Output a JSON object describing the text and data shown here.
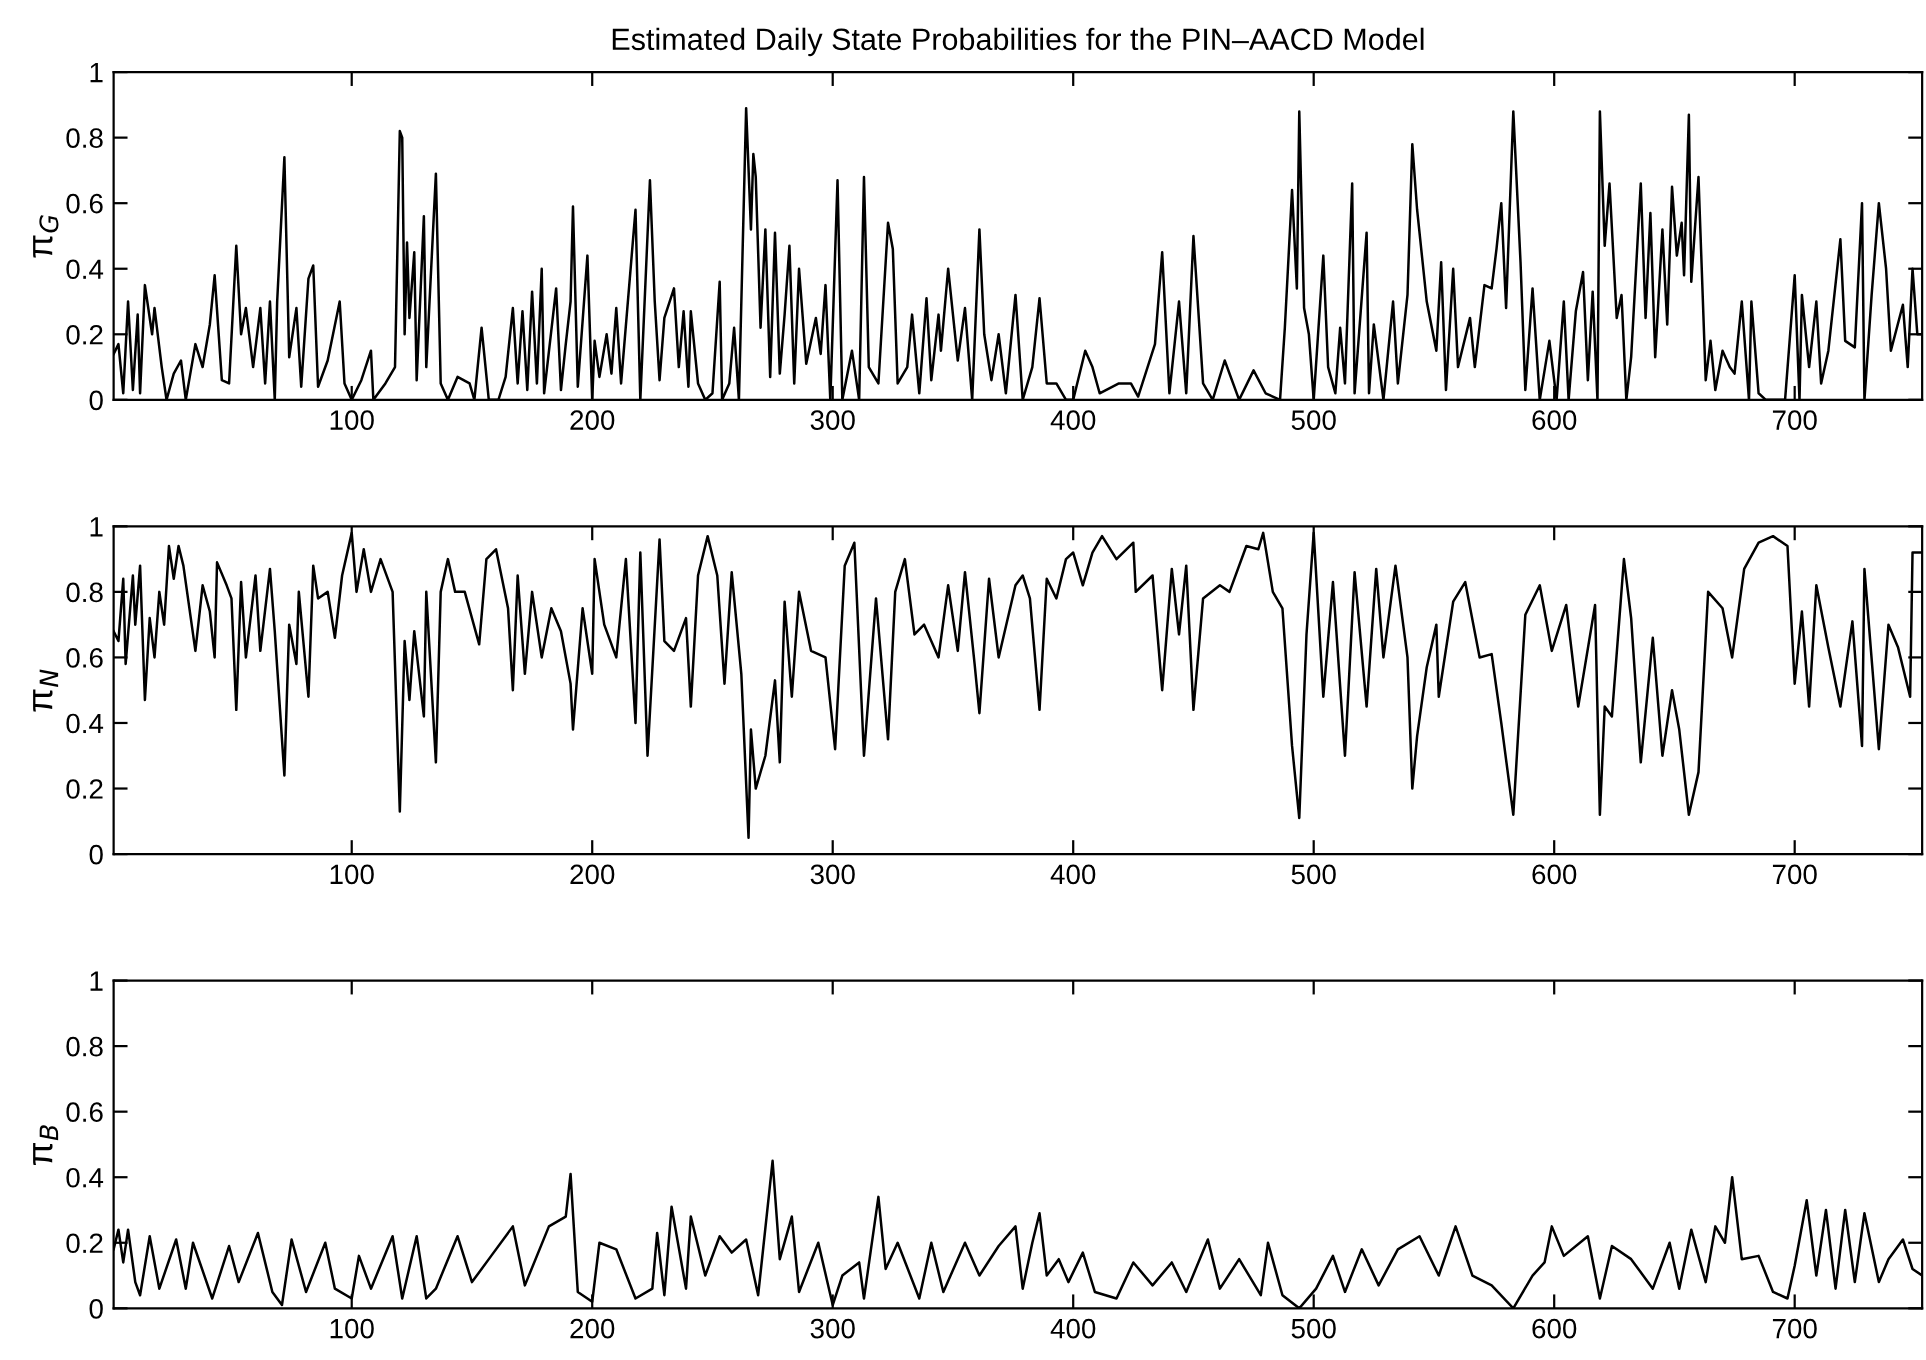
{
  "chart_data": [
    {
      "type": "line",
      "title": "Estimated Daily State Probabilities for the PIN–AACD Model",
      "ylabel": "π$_{G}$",
      "xlim": [
        1,
        753
      ],
      "xticks": [
        100,
        200,
        300,
        400,
        500,
        600,
        700
      ],
      "ylim": [
        0,
        1
      ],
      "yticks": [
        0,
        0.2,
        0.4,
        0.6,
        0.8,
        1
      ],
      "grid": false,
      "marker": "none",
      "line_style": "solid",
      "series": [
        {
          "color": "#000000",
          "x": [
            1,
            3,
            5,
            7,
            9,
            11,
            12,
            14,
            17,
            18,
            21,
            23,
            26,
            29,
            31,
            35,
            38,
            41,
            43,
            46,
            49,
            52,
            54,
            56,
            59,
            62,
            64,
            66,
            68,
            69,
            72,
            74,
            77,
            79,
            82,
            84,
            86,
            90,
            95,
            97,
            100,
            104,
            108,
            109,
            114,
            118,
            120,
            121,
            122,
            123,
            124,
            126,
            127,
            130,
            131,
            135,
            137,
            140,
            144,
            149,
            151,
            154,
            157,
            161,
            164,
            167,
            169,
            171,
            173,
            175,
            177,
            179,
            180,
            185,
            187,
            189,
            191,
            192,
            194,
            198,
            200,
            201,
            203,
            206,
            208,
            210,
            212,
            218,
            220,
            224,
            226,
            228,
            230,
            234,
            236,
            238,
            240,
            241,
            244,
            247,
            250,
            253,
            254,
            257,
            259,
            261,
            264,
            266,
            267,
            268,
            270,
            272,
            274,
            276,
            278,
            280,
            282,
            284,
            286,
            289,
            293,
            295,
            297,
            299,
            302,
            304,
            308,
            311,
            313,
            315,
            319,
            323,
            325,
            327,
            331,
            333,
            336,
            339,
            341,
            344,
            345,
            348,
            352,
            355,
            358,
            361,
            363,
            366,
            369,
            372,
            376,
            379,
            383,
            386,
            389,
            393,
            397,
            400,
            405,
            408,
            411,
            419,
            424,
            427,
            434,
            437,
            440,
            444,
            447,
            450,
            454,
            458,
            463,
            469,
            475,
            480,
            486,
            488,
            491,
            493,
            494,
            496,
            498,
            500,
            504,
            506,
            509,
            511,
            513,
            516,
            517,
            522,
            523,
            525,
            529,
            533,
            535,
            539,
            541,
            543,
            547,
            551,
            553,
            555,
            558,
            560,
            565,
            567,
            571,
            574,
            576,
            578,
            580,
            583,
            586,
            588,
            591,
            594,
            598,
            601,
            604,
            606,
            609,
            612,
            614,
            616,
            618,
            619,
            621,
            623,
            626,
            628,
            630,
            632,
            636,
            638,
            640,
            642,
            645,
            647,
            649,
            651,
            653,
            654,
            656,
            657,
            660,
            663,
            665,
            667,
            670,
            673,
            675,
            678,
            681,
            682,
            685,
            688,
            691,
            696,
            700,
            702,
            703,
            706,
            709,
            711,
            714,
            719,
            721,
            725,
            728,
            729,
            732,
            735,
            738,
            740,
            745,
            747,
            749,
            751,
            753
          ],
          "values": [
            0.14,
            0.17,
            0.02,
            0.3,
            0.03,
            0.26,
            0.02,
            0.35,
            0.2,
            0.28,
            0.1,
            0.0,
            0.08,
            0.12,
            0.0,
            0.17,
            0.1,
            0.23,
            0.38,
            0.06,
            0.05,
            0.47,
            0.2,
            0.28,
            0.1,
            0.28,
            0.05,
            0.3,
            0.0,
            0.3,
            0.74,
            0.13,
            0.28,
            0.04,
            0.37,
            0.41,
            0.04,
            0.12,
            0.3,
            0.05,
            0.0,
            0.06,
            0.15,
            0.0,
            0.05,
            0.1,
            0.82,
            0.8,
            0.2,
            0.48,
            0.25,
            0.45,
            0.06,
            0.56,
            0.1,
            0.69,
            0.05,
            0.0,
            0.07,
            0.05,
            0.0,
            0.22,
            0.0,
            0.0,
            0.07,
            0.28,
            0.05,
            0.27,
            0.03,
            0.33,
            0.05,
            0.4,
            0.02,
            0.34,
            0.03,
            0.17,
            0.3,
            0.59,
            0.04,
            0.44,
            0.0,
            0.18,
            0.07,
            0.2,
            0.08,
            0.28,
            0.05,
            0.58,
            0.0,
            0.67,
            0.3,
            0.06,
            0.25,
            0.34,
            0.1,
            0.27,
            0.04,
            0.27,
            0.05,
            0.0,
            0.02,
            0.36,
            0.0,
            0.05,
            0.22,
            0.0,
            0.89,
            0.52,
            0.75,
            0.68,
            0.22,
            0.52,
            0.07,
            0.51,
            0.08,
            0.26,
            0.47,
            0.05,
            0.4,
            0.11,
            0.25,
            0.14,
            0.35,
            0.0,
            0.67,
            0.0,
            0.15,
            0.0,
            0.68,
            0.1,
            0.05,
            0.54,
            0.46,
            0.05,
            0.1,
            0.26,
            0.02,
            0.31,
            0.06,
            0.26,
            0.15,
            0.4,
            0.12,
            0.28,
            0.0,
            0.52,
            0.2,
            0.06,
            0.2,
            0.02,
            0.32,
            0.0,
            0.1,
            0.31,
            0.05,
            0.05,
            0.0,
            0.0,
            0.15,
            0.1,
            0.02,
            0.05,
            0.05,
            0.01,
            0.17,
            0.45,
            0.02,
            0.3,
            0.02,
            0.5,
            0.05,
            0.0,
            0.12,
            0.0,
            0.09,
            0.02,
            0.0,
            0.22,
            0.64,
            0.34,
            0.88,
            0.28,
            0.2,
            0.0,
            0.44,
            0.1,
            0.02,
            0.22,
            0.05,
            0.66,
            0.02,
            0.51,
            0.02,
            0.23,
            0.0,
            0.3,
            0.05,
            0.32,
            0.78,
            0.58,
            0.3,
            0.15,
            0.42,
            0.03,
            0.4,
            0.1,
            0.25,
            0.1,
            0.35,
            0.34,
            0.46,
            0.6,
            0.28,
            0.88,
            0.42,
            0.03,
            0.34,
            0.0,
            0.18,
            0.0,
            0.3,
            0.0,
            0.27,
            0.39,
            0.06,
            0.33,
            0.0,
            0.88,
            0.47,
            0.66,
            0.25,
            0.32,
            0.0,
            0.13,
            0.66,
            0.25,
            0.57,
            0.13,
            0.52,
            0.23,
            0.65,
            0.44,
            0.54,
            0.38,
            0.87,
            0.36,
            0.68,
            0.06,
            0.18,
            0.03,
            0.15,
            0.1,
            0.08,
            0.3,
            0.0,
            0.3,
            0.02,
            0.0,
            0.0,
            0.0,
            0.38,
            0.0,
            0.32,
            0.1,
            0.3,
            0.05,
            0.15,
            0.49,
            0.18,
            0.16,
            0.6,
            0.0,
            0.32,
            0.6,
            0.4,
            0.15,
            0.29,
            0.1,
            0.4,
            0.2,
            0.2
          ]
        }
      ]
    },
    {
      "type": "line",
      "ylabel": "π$_{N}$",
      "xlim": [
        1,
        753
      ],
      "xticks": [
        100,
        200,
        300,
        400,
        500,
        600,
        700
      ],
      "ylim": [
        0,
        1
      ],
      "yticks": [
        0,
        0.2,
        0.4,
        0.6,
        0.8,
        1
      ],
      "grid": false,
      "marker": "none",
      "line_style": "solid",
      "series": [
        {
          "color": "#000000",
          "x": [
            1,
            3,
            5,
            6,
            9,
            10,
            12,
            14,
            16,
            18,
            20,
            22,
            24,
            26,
            28,
            30,
            35,
            38,
            41,
            43,
            44,
            48,
            50,
            52,
            54,
            56,
            60,
            62,
            66,
            68,
            72,
            74,
            77,
            78,
            82,
            84,
            86,
            90,
            93,
            96,
            100,
            102,
            105,
            108,
            112,
            117,
            120,
            122,
            124,
            126,
            130,
            131,
            135,
            137,
            140,
            143,
            147,
            153,
            156,
            160,
            165,
            167,
            169,
            172,
            175,
            179,
            183,
            187,
            191,
            192,
            196,
            200,
            201,
            205,
            210,
            214,
            218,
            220,
            223,
            228,
            230,
            234,
            239,
            241,
            244,
            248,
            252,
            255,
            258,
            262,
            265,
            266,
            268,
            272,
            276,
            278,
            280,
            283,
            286,
            291,
            297,
            301,
            305,
            309,
            313,
            318,
            323,
            326,
            330,
            334,
            338,
            344,
            348,
            352,
            355,
            359,
            361,
            365,
            369,
            376,
            379,
            382,
            386,
            389,
            393,
            397,
            400,
            404,
            408,
            412,
            418,
            425,
            426,
            433,
            437,
            441,
            444,
            447,
            450,
            454,
            461,
            465,
            472,
            477,
            479,
            483,
            487,
            491,
            494,
            497,
            500,
            504,
            508,
            513,
            517,
            522,
            526,
            529,
            534,
            539,
            541,
            543,
            547,
            551,
            552,
            558,
            563,
            569,
            574,
            578,
            583,
            588,
            594,
            599,
            605,
            610,
            617,
            619,
            621,
            624,
            629,
            632,
            636,
            641,
            645,
            649,
            652,
            656,
            660,
            664,
            670,
            674,
            679,
            685,
            691,
            697,
            700,
            703,
            706,
            709,
            714,
            719,
            724,
            728,
            729,
            735,
            739,
            743,
            748,
            749,
            753
          ],
          "values": [
            0.68,
            0.65,
            0.84,
            0.58,
            0.85,
            0.7,
            0.88,
            0.47,
            0.72,
            0.6,
            0.8,
            0.7,
            0.94,
            0.84,
            0.94,
            0.88,
            0.62,
            0.82,
            0.74,
            0.6,
            0.89,
            0.82,
            0.78,
            0.44,
            0.83,
            0.6,
            0.85,
            0.62,
            0.87,
            0.68,
            0.24,
            0.7,
            0.58,
            0.8,
            0.48,
            0.88,
            0.78,
            0.8,
            0.66,
            0.85,
            0.98,
            0.8,
            0.93,
            0.8,
            0.9,
            0.8,
            0.13,
            0.65,
            0.47,
            0.68,
            0.42,
            0.8,
            0.28,
            0.8,
            0.9,
            0.8,
            0.8,
            0.64,
            0.9,
            0.93,
            0.75,
            0.5,
            0.85,
            0.55,
            0.8,
            0.6,
            0.75,
            0.68,
            0.52,
            0.38,
            0.75,
            0.55,
            0.9,
            0.7,
            0.6,
            0.9,
            0.4,
            0.92,
            0.3,
            0.96,
            0.65,
            0.62,
            0.72,
            0.45,
            0.85,
            0.97,
            0.85,
            0.52,
            0.86,
            0.55,
            0.05,
            0.38,
            0.2,
            0.3,
            0.53,
            0.28,
            0.77,
            0.48,
            0.8,
            0.62,
            0.6,
            0.32,
            0.88,
            0.95,
            0.3,
            0.78,
            0.35,
            0.8,
            0.9,
            0.67,
            0.7,
            0.6,
            0.82,
            0.62,
            0.86,
            0.58,
            0.43,
            0.84,
            0.6,
            0.82,
            0.85,
            0.78,
            0.44,
            0.84,
            0.78,
            0.9,
            0.92,
            0.82,
            0.92,
            0.97,
            0.9,
            0.95,
            0.8,
            0.85,
            0.5,
            0.87,
            0.67,
            0.88,
            0.44,
            0.78,
            0.82,
            0.8,
            0.94,
            0.93,
            0.98,
            0.8,
            0.75,
            0.33,
            0.11,
            0.67,
            0.98,
            0.48,
            0.83,
            0.3,
            0.86,
            0.45,
            0.87,
            0.6,
            0.88,
            0.6,
            0.2,
            0.36,
            0.57,
            0.7,
            0.48,
            0.77,
            0.83,
            0.6,
            0.61,
            0.4,
            0.12,
            0.73,
            0.82,
            0.62,
            0.76,
            0.45,
            0.76,
            0.12,
            0.45,
            0.42,
            0.9,
            0.72,
            0.28,
            0.66,
            0.3,
            0.5,
            0.38,
            0.12,
            0.25,
            0.8,
            0.75,
            0.6,
            0.87,
            0.95,
            0.97,
            0.94,
            0.52,
            0.74,
            0.45,
            0.82,
            0.63,
            0.45,
            0.71,
            0.33,
            0.87,
            0.32,
            0.7,
            0.63,
            0.48,
            0.92,
            0.92
          ]
        }
      ]
    },
    {
      "type": "line",
      "ylabel": "π$_{B}$",
      "xlim": [
        1,
        753
      ],
      "xticks": [
        100,
        200,
        300,
        400,
        500,
        600,
        700
      ],
      "ylim": [
        0,
        1
      ],
      "yticks": [
        0,
        0.2,
        0.4,
        0.6,
        0.8,
        1
      ],
      "grid": false,
      "marker": "none",
      "line_style": "solid",
      "series": [
        {
          "color": "#000000",
          "x": [
            1,
            3,
            5,
            7,
            10,
            12,
            16,
            20,
            27,
            31,
            34,
            42,
            49,
            53,
            61,
            67,
            71,
            75,
            81,
            89,
            93,
            100,
            103,
            108,
            117,
            121,
            127,
            131,
            135,
            144,
            150,
            158,
            167,
            172,
            182,
            189,
            191,
            194,
            200,
            203,
            210,
            218,
            225,
            227,
            230,
            233,
            239,
            241,
            247,
            253,
            258,
            264,
            269,
            275,
            278,
            283,
            286,
            294,
            300,
            304,
            311,
            313,
            319,
            322,
            327,
            336,
            341,
            346,
            355,
            361,
            369,
            376,
            379,
            383,
            386,
            389,
            394,
            398,
            404,
            409,
            418,
            425,
            433,
            441,
            447,
            456,
            461,
            469,
            478,
            481,
            487,
            494,
            501,
            508,
            513,
            520,
            527,
            535,
            544,
            552,
            559,
            566,
            574,
            583,
            591,
            596,
            599,
            604,
            614,
            619,
            624,
            632,
            641,
            648,
            652,
            657,
            663,
            667,
            671,
            674,
            678,
            685,
            691,
            697,
            700,
            705,
            709,
            713,
            717,
            721,
            725,
            729,
            735,
            739,
            745,
            749,
            753
          ],
          "values": [
            0.18,
            0.24,
            0.14,
            0.24,
            0.08,
            0.04,
            0.22,
            0.06,
            0.21,
            0.06,
            0.2,
            0.03,
            0.19,
            0.08,
            0.23,
            0.05,
            0.01,
            0.21,
            0.05,
            0.2,
            0.06,
            0.03,
            0.16,
            0.06,
            0.22,
            0.03,
            0.22,
            0.03,
            0.06,
            0.22,
            0.08,
            0.16,
            0.25,
            0.07,
            0.25,
            0.28,
            0.41,
            0.05,
            0.02,
            0.2,
            0.18,
            0.03,
            0.06,
            0.23,
            0.04,
            0.31,
            0.06,
            0.28,
            0.1,
            0.22,
            0.17,
            0.21,
            0.04,
            0.45,
            0.15,
            0.28,
            0.05,
            0.2,
            0.01,
            0.1,
            0.14,
            0.03,
            0.34,
            0.12,
            0.2,
            0.03,
            0.2,
            0.05,
            0.2,
            0.1,
            0.19,
            0.25,
            0.06,
            0.2,
            0.29,
            0.1,
            0.15,
            0.08,
            0.17,
            0.05,
            0.03,
            0.14,
            0.07,
            0.14,
            0.05,
            0.21,
            0.06,
            0.15,
            0.04,
            0.2,
            0.04,
            0.0,
            0.06,
            0.16,
            0.05,
            0.18,
            0.07,
            0.18,
            0.22,
            0.1,
            0.25,
            0.1,
            0.07,
            0.0,
            0.1,
            0.14,
            0.25,
            0.16,
            0.22,
            0.03,
            0.19,
            0.15,
            0.06,
            0.2,
            0.06,
            0.24,
            0.08,
            0.25,
            0.2,
            0.4,
            0.15,
            0.16,
            0.05,
            0.03,
            0.13,
            0.33,
            0.1,
            0.3,
            0.06,
            0.3,
            0.08,
            0.29,
            0.08,
            0.15,
            0.21,
            0.12,
            0.1
          ]
        }
      ]
    }
  ]
}
